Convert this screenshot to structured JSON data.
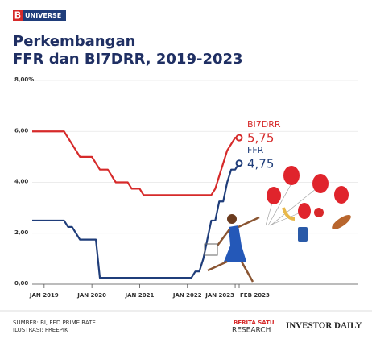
{
  "header": {
    "logo_letter": "B",
    "logo_text": "UNIVERSE"
  },
  "chart_data": {
    "type": "line",
    "title_lines": [
      "Perkembangan",
      "FFR dan BI7DRR, 2019-2023"
    ],
    "x": [
      null,
      null,
      null,
      "JAN 2019",
      null,
      null,
      null,
      null,
      null,
      null,
      null,
      null,
      null,
      null,
      null,
      "JAN 2020",
      null,
      null,
      null,
      null,
      null,
      null,
      null,
      null,
      null,
      null,
      null,
      "JAN 2021",
      null,
      null,
      null,
      null,
      null,
      null,
      null,
      null,
      null,
      null,
      null,
      "JAN 2022",
      null,
      null,
      null,
      null,
      null,
      null,
      null,
      null,
      null,
      null,
      null,
      "JAN 2023",
      "FEB 2023"
    ],
    "series": [
      {
        "name": "BI7DRR",
        "color": "#d62a2a",
        "values": [
          6.0,
          6.0,
          6.0,
          6.0,
          6.0,
          6.0,
          6.0,
          6.0,
          6.0,
          5.75,
          5.5,
          5.25,
          5.0,
          5.0,
          5.0,
          5.0,
          4.75,
          4.5,
          4.5,
          4.5,
          4.25,
          4.0,
          4.0,
          4.0,
          4.0,
          3.75,
          3.75,
          3.75,
          3.5,
          3.5,
          3.5,
          3.5,
          3.5,
          3.5,
          3.5,
          3.5,
          3.5,
          3.5,
          3.5,
          3.5,
          3.5,
          3.5,
          3.5,
          3.5,
          3.5,
          3.5,
          3.75,
          4.25,
          4.75,
          5.25,
          5.5,
          5.75,
          5.75
        ],
        "value_labels": [
          null,
          null,
          null,
          null,
          null,
          null,
          null,
          null,
          null,
          null,
          null,
          null,
          null,
          null,
          null,
          null,
          null,
          null,
          null,
          null,
          null,
          null,
          null,
          null,
          null,
          null,
          null,
          null,
          null,
          null,
          null,
          null,
          null,
          null,
          null,
          null,
          null,
          null,
          null,
          null,
          null,
          null,
          null,
          null,
          null,
          null,
          null,
          null,
          null,
          null,
          null,
          null,
          "5,75"
        ]
      },
      {
        "name": "FFR",
        "color": "#1f3d7a",
        "values": [
          2.5,
          2.5,
          2.5,
          2.5,
          2.5,
          2.5,
          2.5,
          2.5,
          2.5,
          2.25,
          2.25,
          2.0,
          1.75,
          1.75,
          1.75,
          1.75,
          1.75,
          0.25,
          0.25,
          0.25,
          0.25,
          0.25,
          0.25,
          0.25,
          0.25,
          0.25,
          0.25,
          0.25,
          0.25,
          0.25,
          0.25,
          0.25,
          0.25,
          0.25,
          0.25,
          0.25,
          0.25,
          0.25,
          0.25,
          0.25,
          0.25,
          0.5,
          0.5,
          1.0,
          1.75,
          2.5,
          2.5,
          3.25,
          3.25,
          4.0,
          4.5,
          4.5,
          4.75
        ],
        "value_labels": [
          null,
          null,
          null,
          null,
          null,
          null,
          null,
          null,
          null,
          null,
          null,
          null,
          null,
          null,
          null,
          null,
          null,
          null,
          null,
          null,
          null,
          null,
          null,
          null,
          null,
          null,
          null,
          null,
          null,
          null,
          null,
          null,
          null,
          null,
          null,
          null,
          null,
          null,
          null,
          null,
          null,
          null,
          null,
          null,
          null,
          null,
          null,
          null,
          null,
          null,
          null,
          null,
          "4,75"
        ]
      }
    ],
    "ylim": [
      0,
      8
    ],
    "yticks": [
      {
        "value": 0,
        "label": "0,00"
      },
      {
        "value": 2,
        "label": "2,00"
      },
      {
        "value": 4,
        "label": "4,00"
      },
      {
        "value": 6,
        "label": "6,00"
      },
      {
        "value": 8,
        "label": "8,00%"
      }
    ]
  },
  "footer": {
    "source": "SUMBER: BI, FED PRIME RATE",
    "illustration": "ILUSTRASI: FREEPIK",
    "brand1_top": "BERITA SATU",
    "brand1_bottom": "RESEARCH",
    "brand2": "INVESTOR DAILY"
  }
}
